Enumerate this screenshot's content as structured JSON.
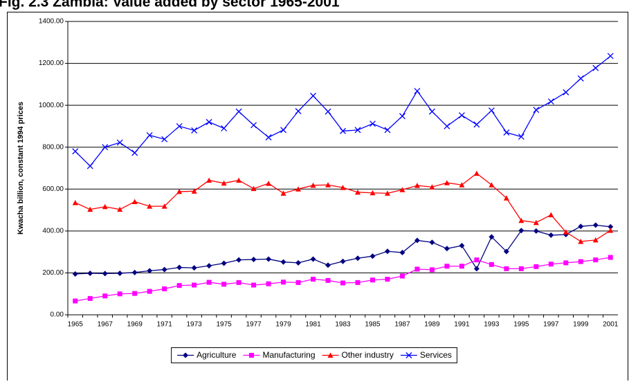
{
  "chart_data": {
    "type": "line",
    "title": "Fig. 2.3 Zambia: Value added by sector 1965-2001",
    "y_label": "Kwacha billion, constant 1994 prices",
    "categories": [
      "1965",
      null,
      "1967",
      null,
      "1969",
      null,
      "1971",
      null,
      "1973",
      null,
      "1975",
      null,
      "1977",
      null,
      "1979",
      null,
      "1981",
      null,
      "1983",
      null,
      "1985",
      null,
      "1987",
      null,
      "1989",
      null,
      "1991",
      null,
      "1993",
      null,
      "1995",
      null,
      "1997",
      null,
      "1999",
      null,
      "2001"
    ],
    "series": [
      {
        "name": "Agriculture",
        "color": "#000080",
        "marker": "diamond",
        "values": [
          195,
          198,
          197,
          198,
          202,
          210,
          216,
          226,
          224,
          234,
          246,
          262,
          264,
          266,
          252,
          248,
          266,
          237,
          255,
          270,
          280,
          303,
          297,
          355,
          346,
          316,
          330,
          220,
          372,
          302,
          402,
          400,
          380,
          383,
          422,
          428,
          420
        ]
      },
      {
        "name": "Manufacturing",
        "color": "#FF00FF",
        "marker": "square",
        "values": [
          66,
          78,
          90,
          100,
          102,
          112,
          124,
          140,
          142,
          155,
          146,
          154,
          142,
          148,
          156,
          154,
          170,
          164,
          152,
          154,
          166,
          170,
          185,
          218,
          215,
          232,
          232,
          262,
          240,
          220,
          220,
          230,
          242,
          248,
          254,
          262,
          274
        ]
      },
      {
        "name": "Other industry",
        "color": "#FF0000",
        "marker": "triangle",
        "values": [
          535,
          503,
          516,
          503,
          540,
          518,
          518,
          588,
          590,
          642,
          628,
          642,
          602,
          627,
          580,
          600,
          618,
          620,
          607,
          585,
          582,
          580,
          597,
          617,
          610,
          630,
          620,
          675,
          620,
          557,
          450,
          440,
          477,
          395,
          350,
          357,
          403
        ]
      },
      {
        "name": "Services",
        "color": "#0000FF",
        "marker": "x",
        "values": [
          780,
          710,
          800,
          822,
          773,
          857,
          838,
          900,
          880,
          920,
          890,
          970,
          905,
          847,
          882,
          972,
          1045,
          970,
          877,
          882,
          912,
          882,
          948,
          1068,
          970,
          900,
          952,
          908,
          975,
          870,
          850,
          978,
          1018,
          1062,
          1128,
          1178,
          1235
        ]
      }
    ],
    "ylim": [
      0,
      1400
    ],
    "yticks": [
      {
        "value": 0,
        "label": "0.00"
      },
      {
        "value": 200,
        "label": "200.00"
      },
      {
        "value": 400,
        "label": "400.00"
      },
      {
        "value": 600,
        "label": "600.00"
      },
      {
        "value": 800,
        "label": "800.00"
      },
      {
        "value": 1000,
        "label": "1000.00"
      },
      {
        "value": 1200,
        "label": "1200.00"
      },
      {
        "value": 1400,
        "label": "1400.00"
      }
    ],
    "grid": true,
    "legend": "bottom"
  }
}
